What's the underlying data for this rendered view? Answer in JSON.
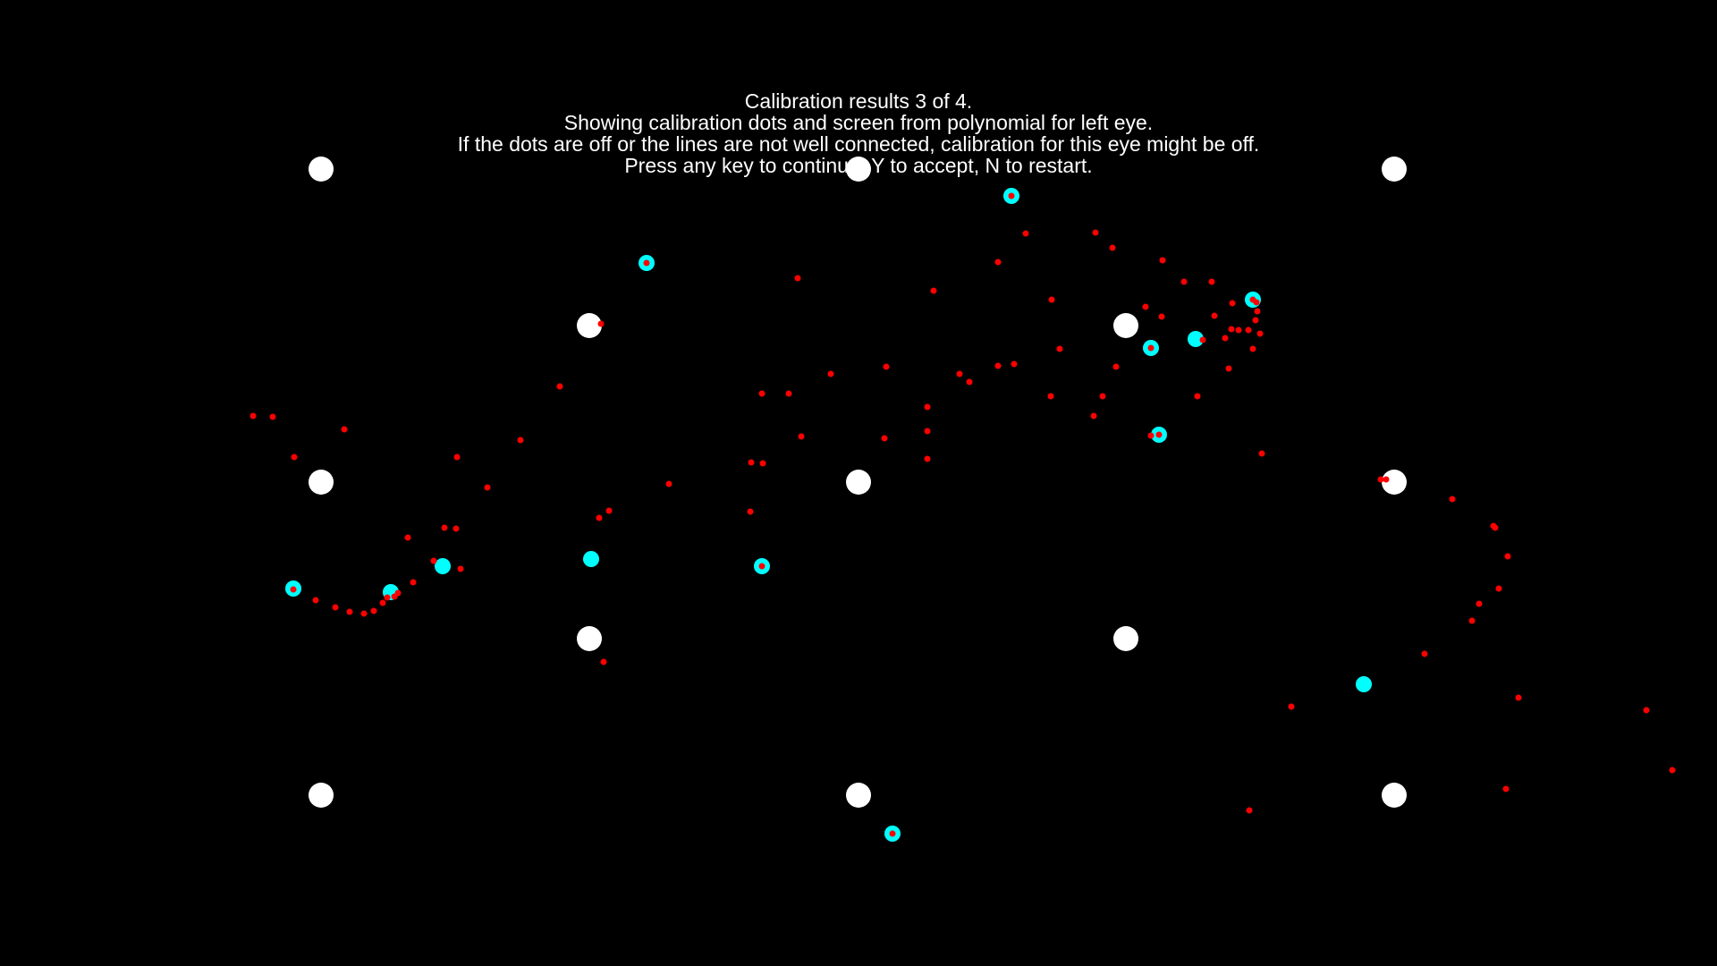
{
  "instructions": {
    "line1": "Calibration results 3 of 4.",
    "line2": "Showing calibration dots and screen from polynomial for left eye.",
    "line3": "If the dots are off or the lines are not well connected, calibration for this eye might be off.",
    "line4": "Press any key to continue, Y to accept, N to restart."
  },
  "colors": {
    "background": "#000000",
    "text": "#ffffff",
    "target_dot": "#ffffff",
    "measured_point": "#00ffff",
    "mapped_point": "#ff0000"
  },
  "legend": {
    "target_dot": "calibration-target-icon",
    "measured_point": "measured-gaze-icon",
    "mapped_point": "polynomial-mapped-icon"
  },
  "keys": {
    "continue": "any",
    "accept": "Y",
    "restart": "N"
  }
}
